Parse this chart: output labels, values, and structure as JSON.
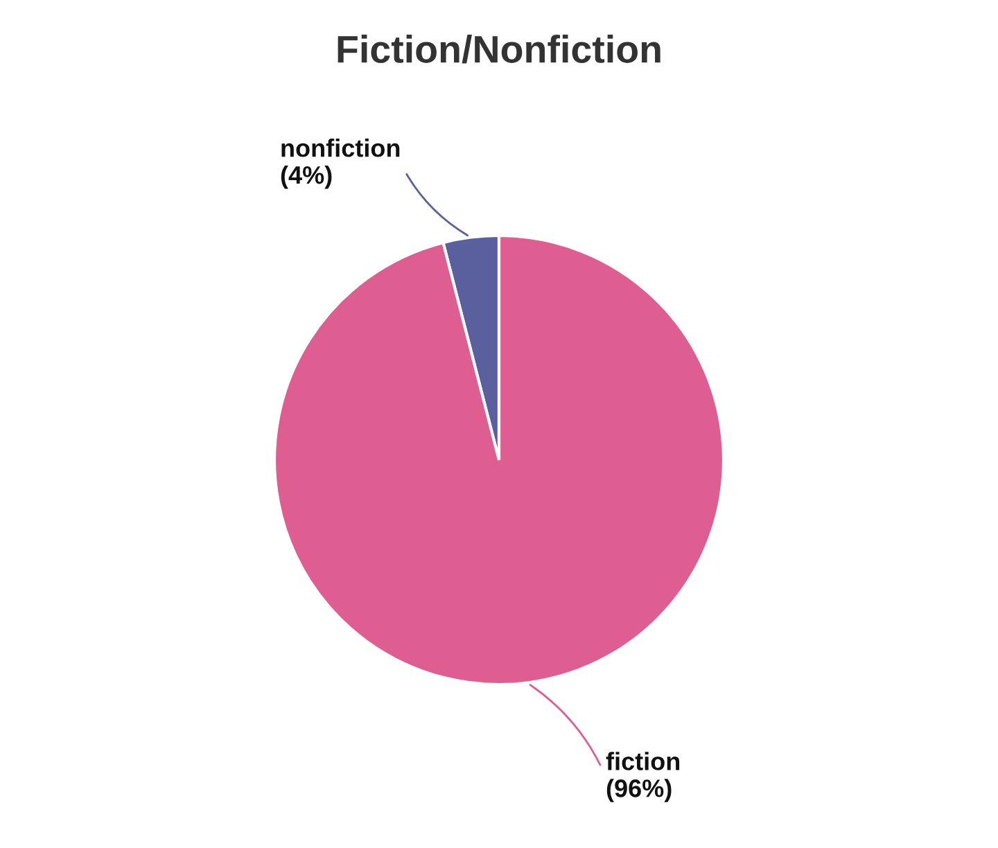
{
  "chart_data": {
    "type": "pie",
    "title": "Fiction/Nonfiction",
    "categories": [
      "nonfiction",
      "fiction"
    ],
    "values": [
      4,
      96
    ],
    "value_labels": [
      "(4%)",
      "(96%)"
    ],
    "colors": [
      "#5a5f9e",
      "#df5e91"
    ]
  }
}
